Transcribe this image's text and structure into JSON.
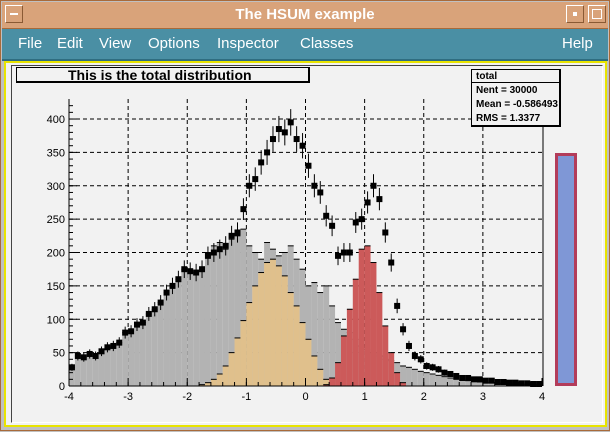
{
  "window": {
    "title": "The HSUM example"
  },
  "menu": {
    "file": "File",
    "edit": "Edit",
    "view": "View",
    "options": "Options",
    "inspector": "Inspector",
    "classes": "Classes",
    "help": "Help"
  },
  "plot": {
    "title": "This is the total distribution"
  },
  "stats": {
    "name": "total",
    "entries": "Nent = 30000",
    "mean": "Mean = -0.586493",
    "rms": "RMS = 1.3377"
  },
  "colors": {
    "titlebar": "#d9a37a",
    "menubar": "#4a8fa4",
    "frame_border": "#e8e400",
    "gray_hist": "#b3b3b3",
    "tan_hist": "#e0c08c",
    "red_hist": "#cc5a5a",
    "slider_fill": "#7f97d6",
    "slider_border": "#b33c5a"
  },
  "chart_data": {
    "type": "bar",
    "xlim": [
      -4,
      4
    ],
    "ylim": [
      0,
      430
    ],
    "x_ticks": [
      -4,
      -3,
      -2,
      -1,
      0,
      1,
      2,
      3,
      4
    ],
    "y_ticks": [
      0,
      50,
      100,
      150,
      200,
      250,
      300,
      350,
      400
    ],
    "grid": true,
    "bin_width": 0.1,
    "series": [
      {
        "name": "total",
        "style": "markers_with_errors",
        "x": [
          -3.95,
          -3.85,
          -3.75,
          -3.65,
          -3.55,
          -3.45,
          -3.35,
          -3.25,
          -3.15,
          -3.05,
          -2.95,
          -2.85,
          -2.75,
          -2.65,
          -2.55,
          -2.45,
          -2.35,
          -2.25,
          -2.15,
          -2.05,
          -1.95,
          -1.85,
          -1.75,
          -1.65,
          -1.55,
          -1.45,
          -1.35,
          -1.25,
          -1.15,
          -1.05,
          -0.95,
          -0.85,
          -0.75,
          -0.65,
          -0.55,
          -0.45,
          -0.35,
          -0.25,
          -0.15,
          -0.05,
          0.05,
          0.15,
          0.25,
          0.35,
          0.45,
          0.55,
          0.65,
          0.75,
          0.85,
          0.95,
          1.05,
          1.15,
          1.25,
          1.35,
          1.45,
          1.55,
          1.65,
          1.75,
          1.85,
          1.95,
          2.05,
          2.15,
          2.25,
          2.35,
          2.45,
          2.55,
          2.65,
          2.75,
          2.85,
          2.95,
          3.05,
          3.15,
          3.25,
          3.35,
          3.45,
          3.55,
          3.65,
          3.75,
          3.85,
          3.95
        ],
        "values": [
          28,
          45,
          43,
          48,
          45,
          52,
          58,
          60,
          65,
          80,
          82,
          92,
          95,
          108,
          115,
          125,
          140,
          150,
          160,
          175,
          172,
          170,
          175,
          195,
          200,
          205,
          210,
          225,
          230,
          265,
          300,
          310,
          335,
          350,
          370,
          385,
          380,
          395,
          370,
          360,
          330,
          300,
          290,
          255,
          240,
          195,
          200,
          200,
          245,
          250,
          275,
          300,
          280,
          230,
          185,
          120,
          85,
          60,
          45,
          40,
          30,
          28,
          25,
          20,
          18,
          15,
          12,
          12,
          10,
          10,
          8,
          8,
          6,
          6,
          5,
          5,
          4,
          4,
          3,
          3
        ]
      },
      {
        "name": "gray",
        "style": "filled_histogram",
        "x": [
          -3.95,
          -3.85,
          -3.75,
          -3.65,
          -3.55,
          -3.45,
          -3.35,
          -3.25,
          -3.15,
          -3.05,
          -2.95,
          -2.85,
          -2.75,
          -2.65,
          -2.55,
          -2.45,
          -2.35,
          -2.25,
          -2.15,
          -2.05,
          -1.95,
          -1.85,
          -1.75,
          -1.65,
          -1.55,
          -1.45,
          -1.35,
          -1.25,
          -1.15,
          -1.05,
          -0.95,
          -0.85,
          -0.75,
          -0.65,
          -0.55,
          -0.45,
          -0.35,
          -0.25,
          -0.15,
          -0.05,
          0.05,
          0.15,
          0.25,
          0.35,
          0.45,
          0.55,
          0.65,
          0.75,
          0.85,
          0.95,
          1.05,
          1.15,
          1.25,
          1.35,
          1.45,
          1.55,
          1.65,
          1.75,
          1.85,
          1.95,
          2.05,
          2.15,
          2.25,
          2.35,
          2.45,
          2.55,
          2.65,
          2.75,
          2.85,
          2.95,
          3.05,
          3.15,
          3.25,
          3.35,
          3.45,
          3.55,
          3.65,
          3.75,
          3.85,
          3.95
        ],
        "values": [
          28,
          45,
          43,
          48,
          45,
          52,
          58,
          60,
          65,
          80,
          82,
          92,
          95,
          108,
          115,
          125,
          140,
          150,
          160,
          175,
          172,
          170,
          175,
          200,
          210,
          215,
          205,
          220,
          225,
          235,
          210,
          200,
          190,
          215,
          205,
          195,
          200,
          210,
          190,
          175,
          150,
          155,
          140,
          150,
          120,
          95,
          85,
          80,
          70,
          60,
          55,
          50,
          45,
          40,
          38,
          35,
          30,
          28,
          25,
          22,
          20,
          18,
          16,
          14,
          12,
          10,
          9,
          8,
          7,
          6,
          5,
          5,
          4,
          4,
          3,
          3,
          3,
          2,
          2,
          2
        ]
      },
      {
        "name": "tan",
        "style": "filled_histogram",
        "x": [
          -1.75,
          -1.65,
          -1.55,
          -1.45,
          -1.35,
          -1.25,
          -1.15,
          -1.05,
          -0.95,
          -0.85,
          -0.75,
          -0.65,
          -0.55,
          -0.45,
          -0.35,
          -0.25,
          -0.15,
          -0.05,
          0.05,
          0.15,
          0.25,
          0.35
        ],
        "values": [
          2,
          5,
          10,
          18,
          30,
          50,
          72,
          98,
          125,
          150,
          170,
          185,
          190,
          180,
          165,
          140,
          120,
          95,
          70,
          45,
          25,
          10
        ]
      },
      {
        "name": "red",
        "style": "filled_histogram",
        "x": [
          0.35,
          0.45,
          0.55,
          0.65,
          0.75,
          0.85,
          0.95,
          1.05,
          1.15,
          1.25,
          1.35,
          1.45,
          1.55,
          1.65
        ],
        "values": [
          2,
          12,
          35,
          75,
          115,
          160,
          205,
          210,
          185,
          140,
          90,
          50,
          20,
          5
        ]
      }
    ]
  }
}
